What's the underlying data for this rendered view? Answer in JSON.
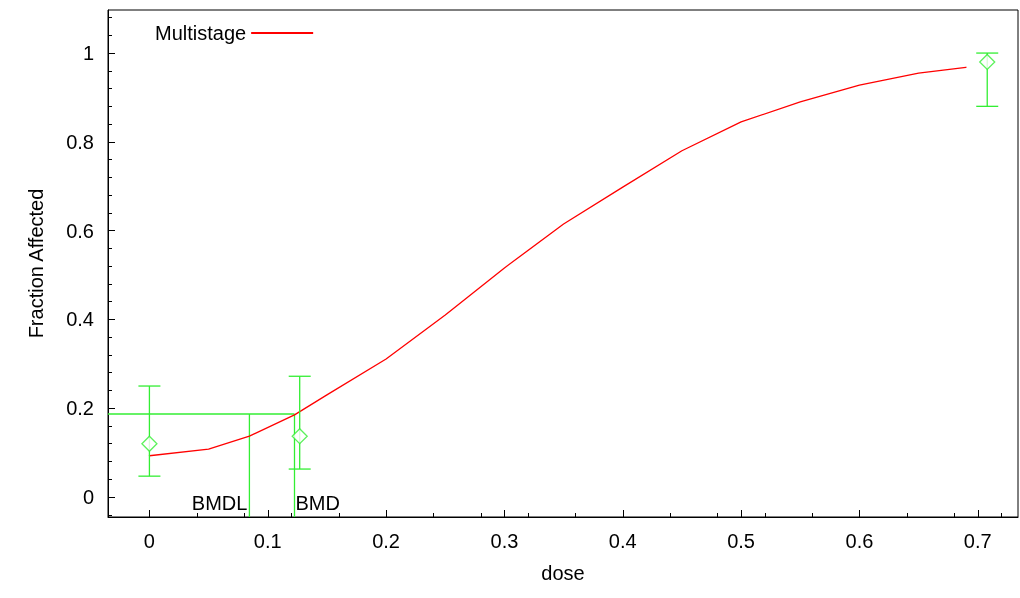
{
  "chart_data": {
    "type": "scatter",
    "xlabel": "dose",
    "ylabel": "Fraction Affected",
    "xlim": [
      -0.035,
      0.734
    ],
    "xticks": [
      0,
      0.1,
      0.2,
      0.3,
      0.4,
      0.5,
      0.6,
      0.7
    ],
    "ylim": [
      -0.045,
      1.097
    ],
    "yticks": [
      0,
      0.2,
      0.4,
      0.6,
      0.8,
      1
    ],
    "series": [
      {
        "type": "line",
        "name": "Multistage",
        "color": "#ff0000",
        "marker": "none",
        "line_style": "solid",
        "x": [
          0,
          0.05,
          0.0845,
          0.1226,
          0.15,
          0.2,
          0.25,
          0.3,
          0.35,
          0.4,
          0.45,
          0.5,
          0.55,
          0.6,
          0.65,
          0.69
        ],
        "values": [
          0.093,
          0.108,
          0.137,
          0.185,
          0.23,
          0.311,
          0.41,
          0.516,
          0.615,
          0.698,
          0.78,
          0.845,
          0.89,
          0.928,
          0.955,
          0.968
        ]
      },
      {
        "color": "#33ee33",
        "marker": "diamond",
        "x": [
          0,
          0.127,
          0.708
        ],
        "values": [
          0.12,
          0.137,
          0.98
        ],
        "errors": [
          [
            0.047,
            0.25
          ],
          [
            0.063,
            0.272
          ],
          [
            0.88,
            1.0
          ]
        ]
      }
    ],
    "ref_lines": [
      {
        "axis": "y",
        "value": 0.187,
        "color": "#33ee33"
      },
      {
        "axis": "x",
        "value": 0.0845,
        "label": "BMDL",
        "color": "#33ee33"
      },
      {
        "axis": "x",
        "value": 0.1226,
        "label": "BMD",
        "color": "#33ee33"
      }
    ],
    "legend": "top left",
    "grid": false
  }
}
